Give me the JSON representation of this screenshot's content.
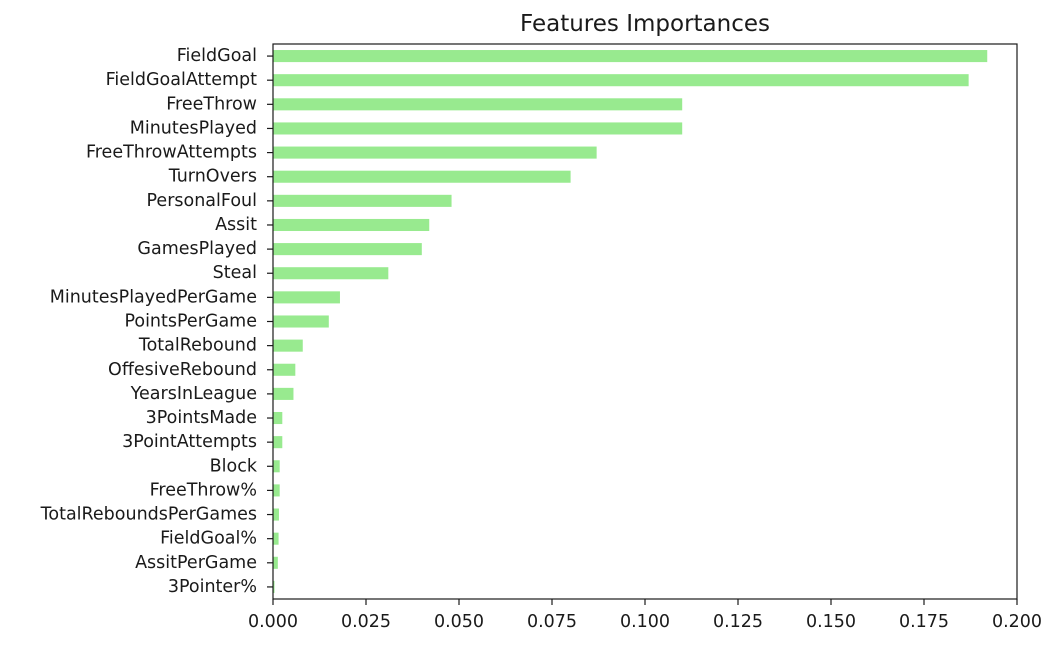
{
  "chart_data": {
    "type": "bar",
    "orientation": "horizontal",
    "title": "Features Importances",
    "xlabel": "",
    "ylabel": "",
    "xlim": [
      0.0,
      0.2
    ],
    "x_ticks": [
      "0.000",
      "0.025",
      "0.050",
      "0.075",
      "0.100",
      "0.125",
      "0.150",
      "0.175",
      "0.200"
    ],
    "grid": false,
    "bar_color": "#98ea8f",
    "categories": [
      "FieldGoal",
      "FieldGoalAttempt",
      "FreeThrow",
      "MinutesPlayed",
      "FreeThrowAttempts",
      "TurnOvers",
      "PersonalFoul",
      "Assit",
      "GamesPlayed",
      "Steal",
      "MinutesPlayedPerGame",
      "PointsPerGame",
      "TotalRebound",
      "OffesiveRebound",
      "YearsInLeague",
      "3PointsMade",
      "3PointAttempts",
      "Block",
      "FreeThrow%",
      "TotalReboundsPerGames",
      "FieldGoal%",
      "AssitPerGame",
      "3Pointer%"
    ],
    "values": [
      0.192,
      0.187,
      0.11,
      0.11,
      0.087,
      0.08,
      0.048,
      0.042,
      0.04,
      0.031,
      0.018,
      0.015,
      0.008,
      0.006,
      0.0055,
      0.0025,
      0.0025,
      0.0018,
      0.0018,
      0.0016,
      0.0015,
      0.0013,
      0.0004
    ]
  }
}
